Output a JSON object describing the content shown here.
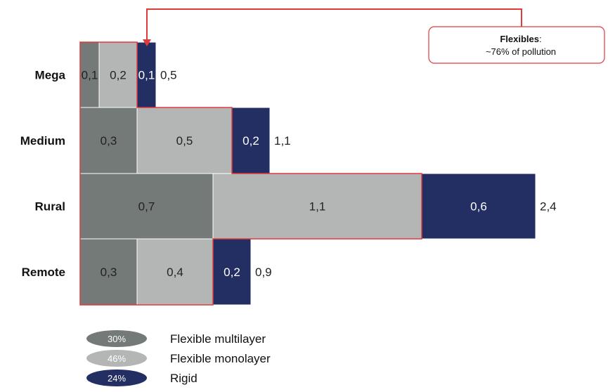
{
  "chart_data": {
    "type": "bar",
    "orientation": "horizontal",
    "stacked": true,
    "categories": [
      "Mega",
      "Medium",
      "Rural",
      "Remote"
    ],
    "series": [
      {
        "name": "Flexible multilayer",
        "values": [
          0.1,
          0.3,
          0.7,
          0.3
        ],
        "labels": [
          "0,1",
          "0,3",
          "0,7",
          "0,3"
        ],
        "color": "#737a78"
      },
      {
        "name": "Flexible monolayer",
        "values": [
          0.2,
          0.5,
          1.1,
          0.4
        ],
        "labels": [
          "0,2",
          "0,5",
          "1,1",
          "0,4"
        ],
        "color": "#b4b6b5"
      },
      {
        "name": "Rigid",
        "values": [
          0.1,
          0.2,
          0.6,
          0.2
        ],
        "labels": [
          "0,1",
          "0,2",
          "0,6",
          "0,2"
        ],
        "color": "#232e63"
      }
    ],
    "totals": [
      "0,5",
      "1,1",
      "2,4",
      "0,9"
    ],
    "legend": [
      {
        "pct": "30%",
        "label": "Flexible multilayer",
        "color": "#737a78"
      },
      {
        "pct": "46%",
        "label": "Flexible monolayer",
        "color": "#b4b6b5"
      },
      {
        "pct": "24%",
        "label": "Rigid",
        "color": "#232e63"
      }
    ],
    "legend_position": "bottom-left",
    "annotation": {
      "bold": "Flexibles",
      "colon": ":",
      "text": "~76% of pollution",
      "color": "#e03a3a"
    },
    "xlabel": "",
    "ylabel": "",
    "grid": false
  }
}
